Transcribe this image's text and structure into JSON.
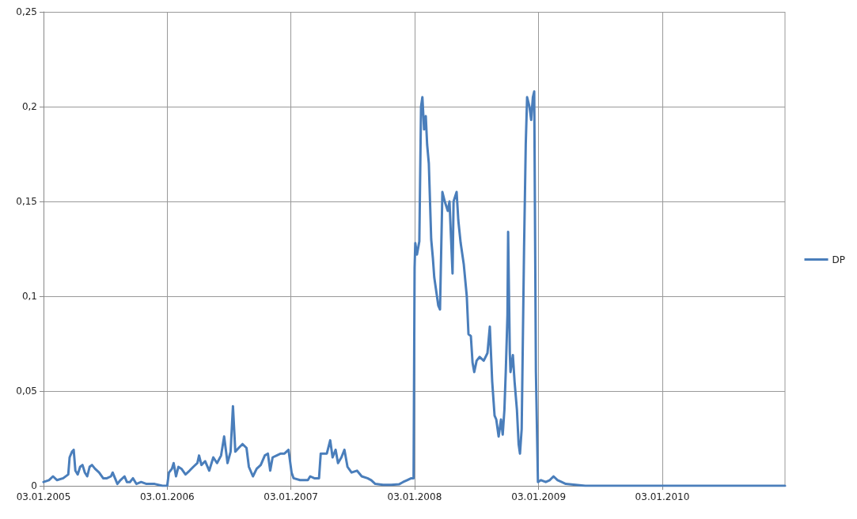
{
  "chart_data": {
    "type": "line",
    "legend": "right",
    "grid": true,
    "marker": "none",
    "line_style": "solid",
    "xlim": [
      "2005-01-03",
      "2010-12-31"
    ],
    "xticks": [
      {
        "value": "2005-01-03",
        "label": "03.01.2005"
      },
      {
        "value": "2006-01-03",
        "label": "03.01.2006"
      },
      {
        "value": "2007-01-03",
        "label": "03.01.2007"
      },
      {
        "value": "2008-01-03",
        "label": "03.01.2008"
      },
      {
        "value": "2009-01-03",
        "label": "03.01.2009"
      },
      {
        "value": "2010-01-03",
        "label": "03.01.2010"
      }
    ],
    "ylim": [
      0,
      0.25
    ],
    "yticks": [
      0,
      {
        "value": 0.05,
        "label": "0,05"
      },
      {
        "value": 0.1,
        "label": "0,1"
      },
      {
        "value": 0.15,
        "label": "0,15"
      },
      {
        "value": 0.2,
        "label": "0,2"
      },
      {
        "value": 0.25,
        "label": "0,25"
      }
    ],
    "x": [
      "2005-01-03",
      "2005-01-19",
      "2005-01-31",
      "2005-02-12",
      "2005-03-02",
      "2005-03-17",
      "2005-03-21",
      "2005-03-28",
      "2005-04-02",
      "2005-04-07",
      "2005-04-14",
      "2005-04-21",
      "2005-04-28",
      "2005-05-05",
      "2005-05-12",
      "2005-05-19",
      "2005-05-26",
      "2005-06-04",
      "2005-06-16",
      "2005-06-28",
      "2005-07-09",
      "2005-07-21",
      "2005-07-26",
      "2005-08-02",
      "2005-08-09",
      "2005-08-18",
      "2005-08-30",
      "2005-09-06",
      "2005-09-15",
      "2005-09-24",
      "2005-10-04",
      "2005-10-18",
      "2005-11-03",
      "2005-11-27",
      "2005-12-20",
      "2006-01-03",
      "2006-01-08",
      "2006-01-17",
      "2006-01-22",
      "2006-01-29",
      "2006-02-05",
      "2006-02-14",
      "2006-02-26",
      "2006-03-10",
      "2006-03-21",
      "2006-04-02",
      "2006-04-07",
      "2006-04-14",
      "2006-04-25",
      "2006-05-07",
      "2006-05-19",
      "2006-05-30",
      "2006-06-11",
      "2006-06-20",
      "2006-06-30",
      "2006-07-09",
      "2006-07-16",
      "2006-07-23",
      "2006-08-02",
      "2006-08-13",
      "2006-08-25",
      "2006-09-01",
      "2006-09-13",
      "2006-09-24",
      "2006-10-06",
      "2006-10-18",
      "2006-10-27",
      "2006-11-03",
      "2006-11-10",
      "2006-11-22",
      "2006-12-04",
      "2006-12-15",
      "2006-12-27",
      "2007-01-05",
      "2007-01-11",
      "2007-01-30",
      "2007-02-22",
      "2007-03-01",
      "2007-03-13",
      "2007-03-27",
      "2007-04-01",
      "2007-04-19",
      "2007-04-29",
      "2007-05-06",
      "2007-05-15",
      "2007-05-22",
      "2007-06-01",
      "2007-06-10",
      "2007-06-19",
      "2007-07-01",
      "2007-07-17",
      "2007-07-31",
      "2007-08-17",
      "2007-08-28",
      "2007-09-09",
      "2007-10-02",
      "2007-10-26",
      "2007-11-18",
      "2007-11-30",
      "2007-12-12",
      "2007-12-24",
      "2007-12-31",
      "2008-01-03",
      "2008-01-05",
      "2008-01-10",
      "2008-01-17",
      "2008-01-22",
      "2008-01-26",
      "2008-01-31",
      "2008-02-05",
      "2008-02-09",
      "2008-02-14",
      "2008-02-21",
      "2008-02-26",
      "2008-03-01",
      "2008-03-09",
      "2008-03-13",
      "2008-03-18",
      "2008-03-25",
      "2008-04-01",
      "2008-04-10",
      "2008-04-15",
      "2008-04-24",
      "2008-04-27",
      "2008-05-06",
      "2008-05-11",
      "2008-05-18",
      "2008-05-27",
      "2008-06-05",
      "2008-06-10",
      "2008-06-17",
      "2008-06-22",
      "2008-06-27",
      "2008-07-04",
      "2008-07-13",
      "2008-07-25",
      "2008-08-05",
      "2008-08-12",
      "2008-08-19",
      "2008-08-26",
      "2008-08-31",
      "2008-09-07",
      "2008-09-14",
      "2008-09-19",
      "2008-09-24",
      "2008-09-28",
      "2008-10-03",
      "2008-10-05",
      "2008-10-10",
      "2008-10-12",
      "2008-10-19",
      "2008-10-24",
      "2008-10-31",
      "2008-11-05",
      "2008-11-09",
      "2008-11-14",
      "2008-11-21",
      "2008-11-26",
      "2008-11-30",
      "2008-12-07",
      "2008-12-12",
      "2008-12-17",
      "2008-12-21",
      "2008-12-26",
      "2009-01-01",
      "2009-01-10",
      "2009-01-24",
      "2009-02-05",
      "2009-02-16",
      "2009-02-28",
      "2009-03-12",
      "2009-03-24",
      "2009-05-21",
      "2010-01-03",
      "2010-12-31"
    ],
    "series": [
      {
        "name": "DP",
        "color": "#4a7ebb",
        "values": [
          0.002,
          0.003,
          0.005,
          0.003,
          0.004,
          0.006,
          0.015,
          0.018,
          0.019,
          0.008,
          0.006,
          0.01,
          0.011,
          0.007,
          0.005,
          0.01,
          0.011,
          0.009,
          0.007,
          0.004,
          0.004,
          0.005,
          0.007,
          0.004,
          0.001,
          0.003,
          0.005,
          0.002,
          0.002,
          0.004,
          0.001,
          0.002,
          0.001,
          0.001,
          0,
          0,
          0.007,
          0.009,
          0.012,
          0.005,
          0.01,
          0.009,
          0.006,
          0.008,
          0.01,
          0.012,
          0.016,
          0.011,
          0.013,
          0.008,
          0.015,
          0.012,
          0.016,
          0.026,
          0.012,
          0.018,
          0.042,
          0.018,
          0.02,
          0.022,
          0.02,
          0.01,
          0.005,
          0.009,
          0.011,
          0.016,
          0.017,
          0.008,
          0.015,
          0.016,
          0.017,
          0.017,
          0.019,
          0.007,
          0.004,
          0.003,
          0.003,
          0.005,
          0.004,
          0.004,
          0.017,
          0.017,
          0.024,
          0.015,
          0.019,
          0.012,
          0.015,
          0.019,
          0.01,
          0.007,
          0.008,
          0.005,
          0.004,
          0.003,
          0.001,
          0.0005,
          0.0005,
          0.0008,
          0.002,
          0.003,
          0.004,
          0.004,
          0.115,
          0.128,
          0.122,
          0.129,
          0.2,
          0.205,
          0.188,
          0.195,
          0.18,
          0.17,
          0.13,
          0.12,
          0.11,
          0.1,
          0.095,
          0.093,
          0.155,
          0.15,
          0.145,
          0.15,
          0.112,
          0.15,
          0.155,
          0.14,
          0.128,
          0.117,
          0.1,
          0.08,
          0.079,
          0.065,
          0.06,
          0.066,
          0.068,
          0.066,
          0.07,
          0.084,
          0.055,
          0.037,
          0.035,
          0.026,
          0.035,
          0.027,
          0.04,
          0.06,
          0.09,
          0.134,
          0.07,
          0.06,
          0.069,
          0.055,
          0.04,
          0.022,
          0.017,
          0.03,
          0.125,
          0.18,
          0.205,
          0.2,
          0.193,
          0.205,
          0.208,
          0.06,
          0.002,
          0.003,
          0.002,
          0.003,
          0.005,
          0.003,
          0.002,
          0.001,
          0,
          0,
          0
        ]
      }
    ]
  }
}
